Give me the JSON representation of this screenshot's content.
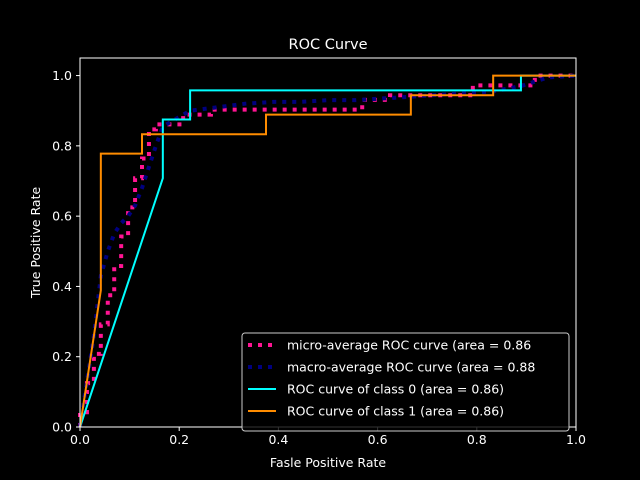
{
  "chart_data": {
    "type": "line",
    "title": "ROC Curve",
    "xlabel": "Fasle Positive Rate",
    "ylabel": "True Positive Rate",
    "xlim": [
      0,
      1
    ],
    "ylim": [
      0,
      1.05
    ],
    "xticks": [
      "0.0",
      "0.2",
      "0.4",
      "0.6",
      "0.8",
      "1.0"
    ],
    "yticks": [
      "0.0",
      "0.2",
      "0.4",
      "0.6",
      "0.8",
      "1.0"
    ],
    "grid": false,
    "legend_position": "lower-right",
    "background": "#000000",
    "foreground": "#ffffff",
    "series": [
      {
        "name": "micro-average ROC curve (area = 0.86",
        "color": "#ff1493",
        "style": "dotted",
        "x": [
          0.0,
          0.0,
          0.0,
          0.014,
          0.014,
          0.028,
          0.028,
          0.042,
          0.042,
          0.056,
          0.056,
          0.069,
          0.069,
          0.083,
          0.083,
          0.097,
          0.097,
          0.111,
          0.111,
          0.125,
          0.125,
          0.139,
          0.139,
          0.153,
          0.153,
          0.208,
          0.208,
          0.264,
          0.264,
          0.569,
          0.569,
          0.625,
          0.625,
          0.792,
          0.792,
          0.917,
          0.917,
          1.0
        ],
        "y": [
          0.0,
          0.014,
          0.042,
          0.042,
          0.125,
          0.125,
          0.208,
          0.208,
          0.292,
          0.292,
          0.375,
          0.375,
          0.458,
          0.458,
          0.542,
          0.542,
          0.625,
          0.625,
          0.708,
          0.708,
          0.764,
          0.764,
          0.847,
          0.847,
          0.861,
          0.861,
          0.889,
          0.889,
          0.903,
          0.903,
          0.931,
          0.931,
          0.944,
          0.944,
          0.972,
          0.972,
          1.0,
          1.0
        ]
      },
      {
        "name": "macro-average ROC curve (area = 0.88",
        "color": "#000080",
        "style": "dotted",
        "x": [
          0.0,
          0.014,
          0.028,
          0.042,
          0.056,
          0.069,
          0.083,
          0.097,
          0.111,
          0.125,
          0.139,
          0.153,
          0.167,
          0.222,
          0.278,
          0.333,
          0.389,
          0.444,
          0.5,
          0.556,
          0.611,
          0.667,
          0.722,
          0.778,
          0.833,
          0.889,
          0.944,
          1.0
        ],
        "y": [
          0.0,
          0.13,
          0.26,
          0.43,
          0.5,
          0.55,
          0.58,
          0.6,
          0.63,
          0.68,
          0.74,
          0.8,
          0.855,
          0.9,
          0.91,
          0.92,
          0.925,
          0.925,
          0.93,
          0.93,
          0.935,
          0.94,
          0.945,
          0.95,
          0.955,
          0.97,
          0.995,
          1.0
        ]
      },
      {
        "name": "ROC curve of class 0 (area = 0.86)",
        "color": "#00ffff",
        "style": "solid",
        "x": [
          0.0,
          0.167,
          0.167,
          0.222,
          0.222,
          0.889,
          0.889,
          1.0
        ],
        "y": [
          0.0,
          0.708,
          0.875,
          0.875,
          0.958,
          0.958,
          1.0,
          1.0
        ]
      },
      {
        "name": "ROC curve of class 1 (area = 0.86)",
        "color": "#ff8c00",
        "style": "solid",
        "x": [
          0.0,
          0.042,
          0.042,
          0.125,
          0.125,
          0.375,
          0.375,
          0.667,
          0.667,
          0.833,
          0.833,
          1.0
        ],
        "y": [
          0.0,
          0.389,
          0.778,
          0.778,
          0.833,
          0.833,
          0.889,
          0.889,
          0.944,
          0.944,
          1.0,
          1.0
        ]
      }
    ]
  }
}
